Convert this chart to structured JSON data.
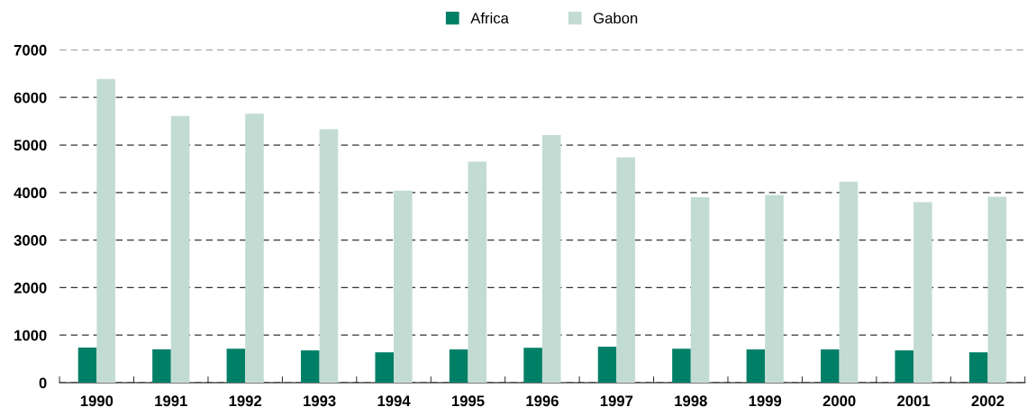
{
  "chart_data": {
    "type": "bar",
    "categories": [
      "1990",
      "1991",
      "1992",
      "1993",
      "1994",
      "1995",
      "1996",
      "1997",
      "1998",
      "1999",
      "2000",
      "2001",
      "2002"
    ],
    "series": [
      {
        "name": "Africa",
        "color": "#007f67",
        "values": [
          740,
          700,
          715,
          680,
          640,
          700,
          735,
          757,
          715,
          700,
          700,
          680,
          640
        ]
      },
      {
        "name": "Gabon",
        "color": "#c3dcd3",
        "values": [
          6390,
          5610,
          5660,
          5330,
          4040,
          4650,
          5210,
          4740,
          3900,
          3950,
          4230,
          3800,
          3910
        ]
      }
    ],
    "ylim": [
      0,
      7000
    ],
    "yticks": [
      0,
      1000,
      2000,
      3000,
      4000,
      5000,
      6000,
      7000
    ],
    "grid": "y",
    "legend": "top"
  }
}
